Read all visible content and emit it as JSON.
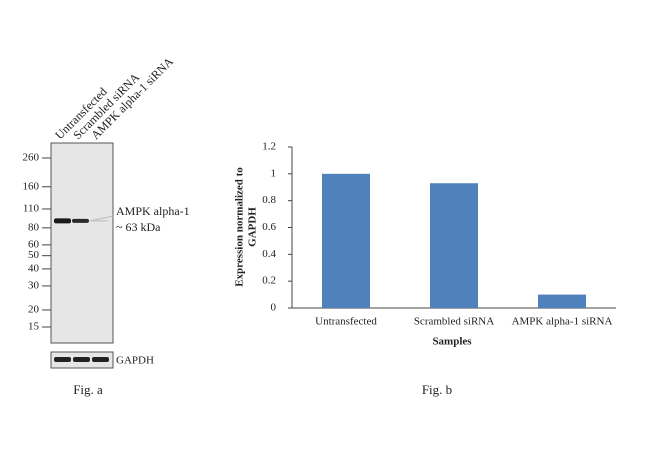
{
  "blot": {
    "lanes": [
      "Untransfected",
      "Scrambled siRNA",
      "AMPK alpha-1 siRNA"
    ],
    "markers": [
      260,
      160,
      110,
      80,
      60,
      50,
      40,
      30,
      20,
      15
    ],
    "band_label": [
      "AMPK alpha-1",
      "~ 63 kDa"
    ],
    "loading_control": "GAPDH",
    "caption": "Fig. a"
  },
  "chart_data": {
    "type": "bar",
    "categories": [
      "Untransfected",
      "Scrambled siRNA",
      "AMPK alpha-1 siRNA"
    ],
    "values": [
      1,
      0.93,
      0.1
    ],
    "color": "#4f81bd",
    "ylim": [
      0,
      1.2
    ],
    "yticks": [
      0,
      0.2,
      0.4,
      0.6,
      0.8,
      1,
      1.2
    ],
    "ylabel": [
      "Expression normalized to",
      "GAPDH"
    ],
    "xlabel": "Samples",
    "grid": false,
    "caption": "Fig. b"
  }
}
